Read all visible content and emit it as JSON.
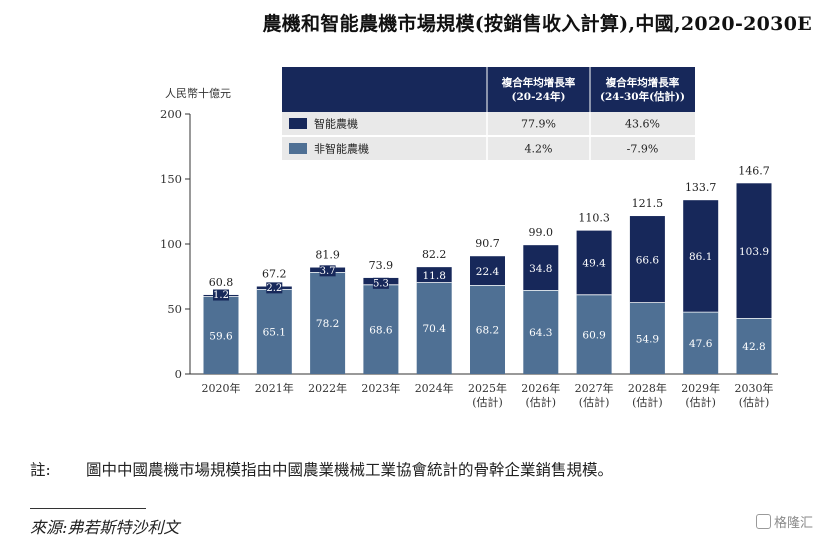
{
  "title": "農機和智能農機市場規模(按銷售收入計算),中國,2020-2030E",
  "chart_data": {
    "type": "bar",
    "stacked": true,
    "ylabel": "人民幣十億元",
    "ylim": [
      0,
      200
    ],
    "yticks": [
      "0",
      "50",
      "100",
      "150",
      "200"
    ],
    "categories": [
      [
        "2020年"
      ],
      [
        "2021年"
      ],
      [
        "2022年"
      ],
      [
        "2023年"
      ],
      [
        "2024年"
      ],
      [
        "2025年",
        "(估計)"
      ],
      [
        "2026年",
        "(估計)"
      ],
      [
        "2027年",
        "(估計)"
      ],
      [
        "2028年",
        "(估計)"
      ],
      [
        "2029年",
        "(估計)"
      ],
      [
        "2030年",
        "(估計)"
      ]
    ],
    "series": [
      {
        "name": "非智能農機",
        "color": "#4f7094",
        "values": [
          59.6,
          65.1,
          78.2,
          68.6,
          70.4,
          68.2,
          64.3,
          60.9,
          54.9,
          47.6,
          42.8
        ]
      },
      {
        "name": "智能農機",
        "color": "#17285a",
        "values": [
          1.2,
          2.2,
          3.7,
          5.3,
          11.8,
          22.4,
          34.8,
          49.4,
          66.6,
          86.1,
          103.9
        ]
      }
    ],
    "totals": [
      60.8,
      67.2,
      81.9,
      73.9,
      82.2,
      90.7,
      99.0,
      110.3,
      121.5,
      133.7,
      146.7
    ],
    "cagr_table": {
      "headers": [
        [
          "複合年均增長率",
          "(20-24年)"
        ],
        [
          "複合年均增長率",
          "(24-30年(估計))"
        ]
      ],
      "rows": [
        {
          "name": "智能農機",
          "values": [
            "77.9%",
            "43.6%"
          ]
        },
        {
          "name": "非智能農機",
          "values": [
            "4.2%",
            "-7.9%"
          ]
        }
      ]
    }
  },
  "note": {
    "label": "註:",
    "text": "圖中中國農機市場規模指由中國農業機械工業協會統計的骨幹企業銷售規模。"
  },
  "source": "來源:弗若斯特沙利文",
  "watermark": "格隆汇"
}
